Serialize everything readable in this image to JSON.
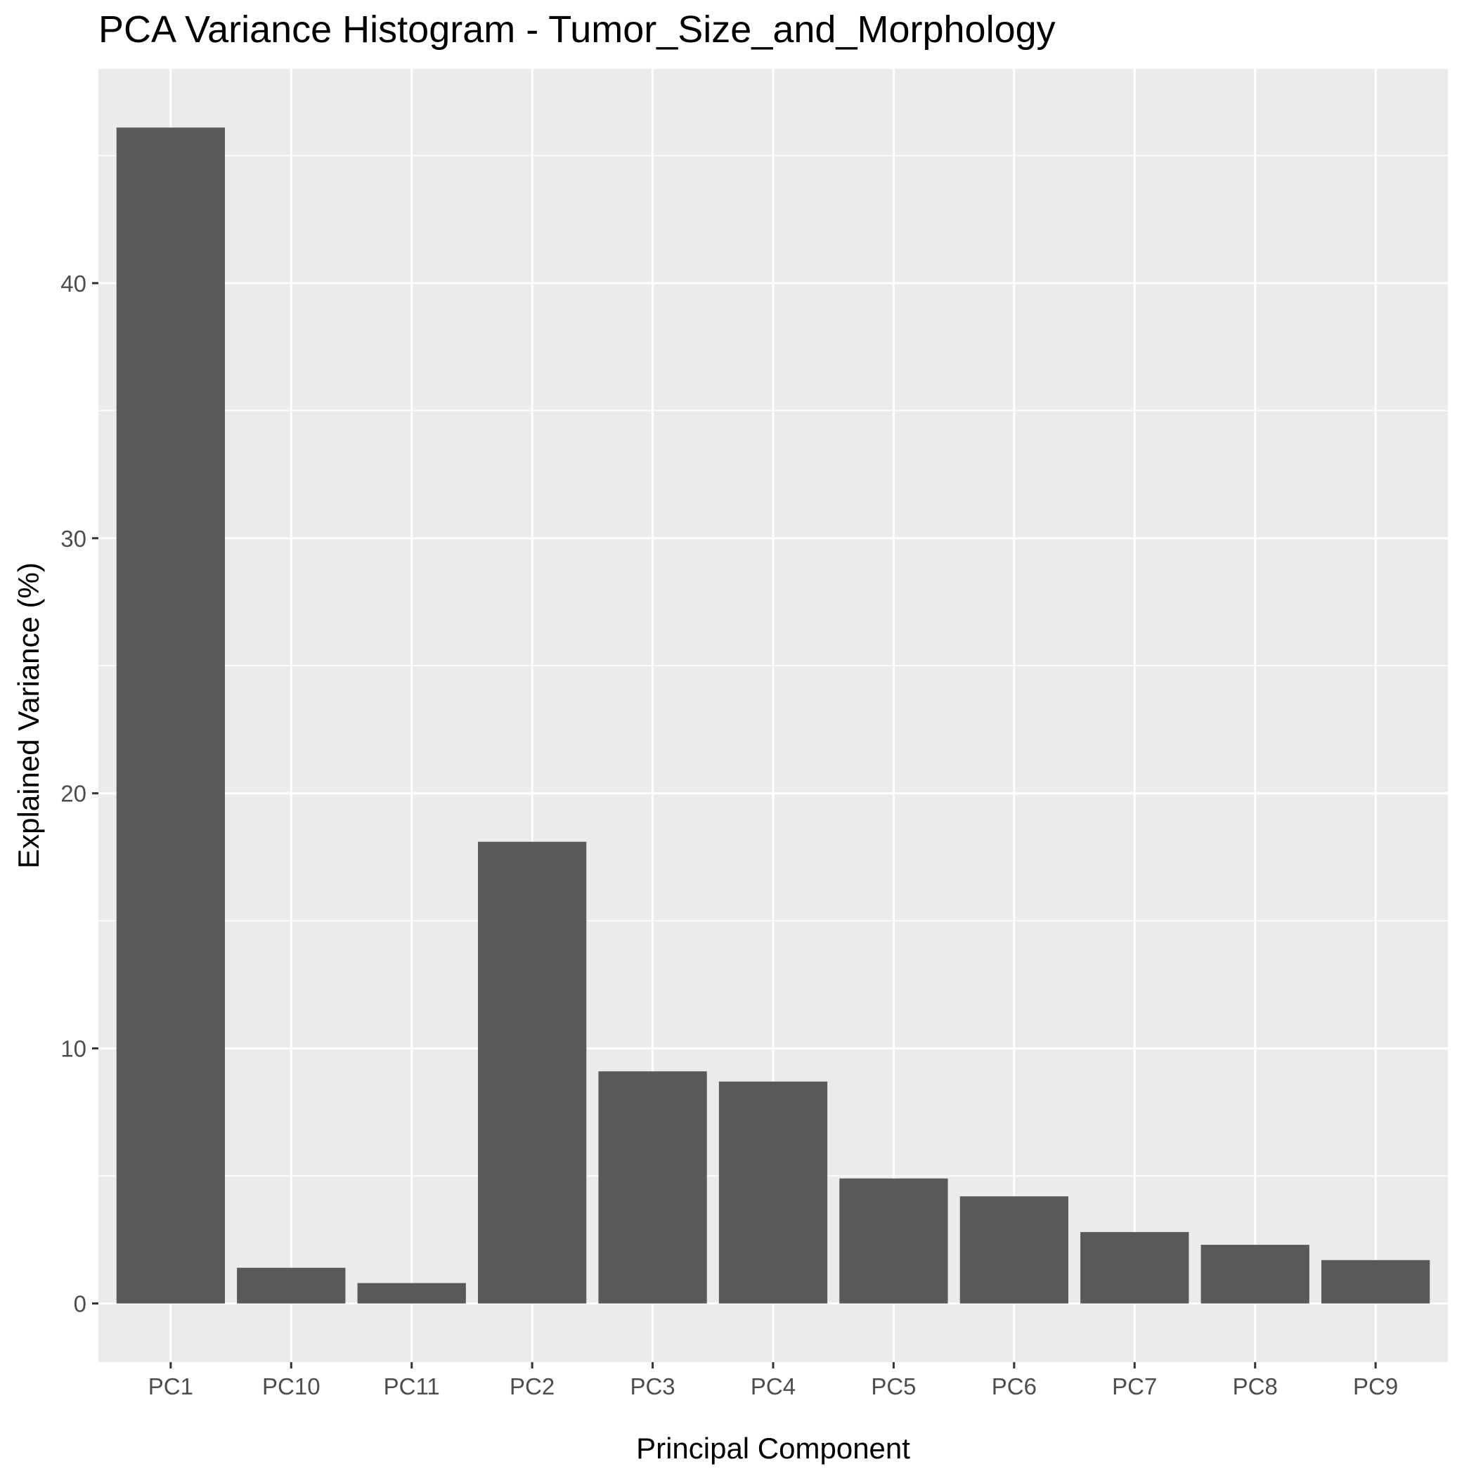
{
  "chart_data": {
    "type": "bar",
    "title": "PCA Variance Histogram - Tumor_Size_and_Morphology",
    "xlabel": "Principal Component",
    "ylabel": "Explained Variance (%)",
    "categories": [
      "PC1",
      "PC10",
      "PC11",
      "PC2",
      "PC3",
      "PC4",
      "PC5",
      "PC6",
      "PC7",
      "PC8",
      "PC9"
    ],
    "values": [
      46.1,
      1.4,
      0.8,
      18.1,
      9.1,
      8.7,
      4.9,
      4.2,
      2.8,
      2.3,
      1.7
    ],
    "ylim": [
      -2.3,
      48.4
    ],
    "yticks": [
      0,
      10,
      20,
      30,
      40
    ],
    "grid": true,
    "colors": {
      "panel": "#EBEBEB",
      "grid": "#FFFFFF",
      "bar": "#595959",
      "tick": "#333333",
      "tick_label": "#4D4D4D"
    }
  }
}
